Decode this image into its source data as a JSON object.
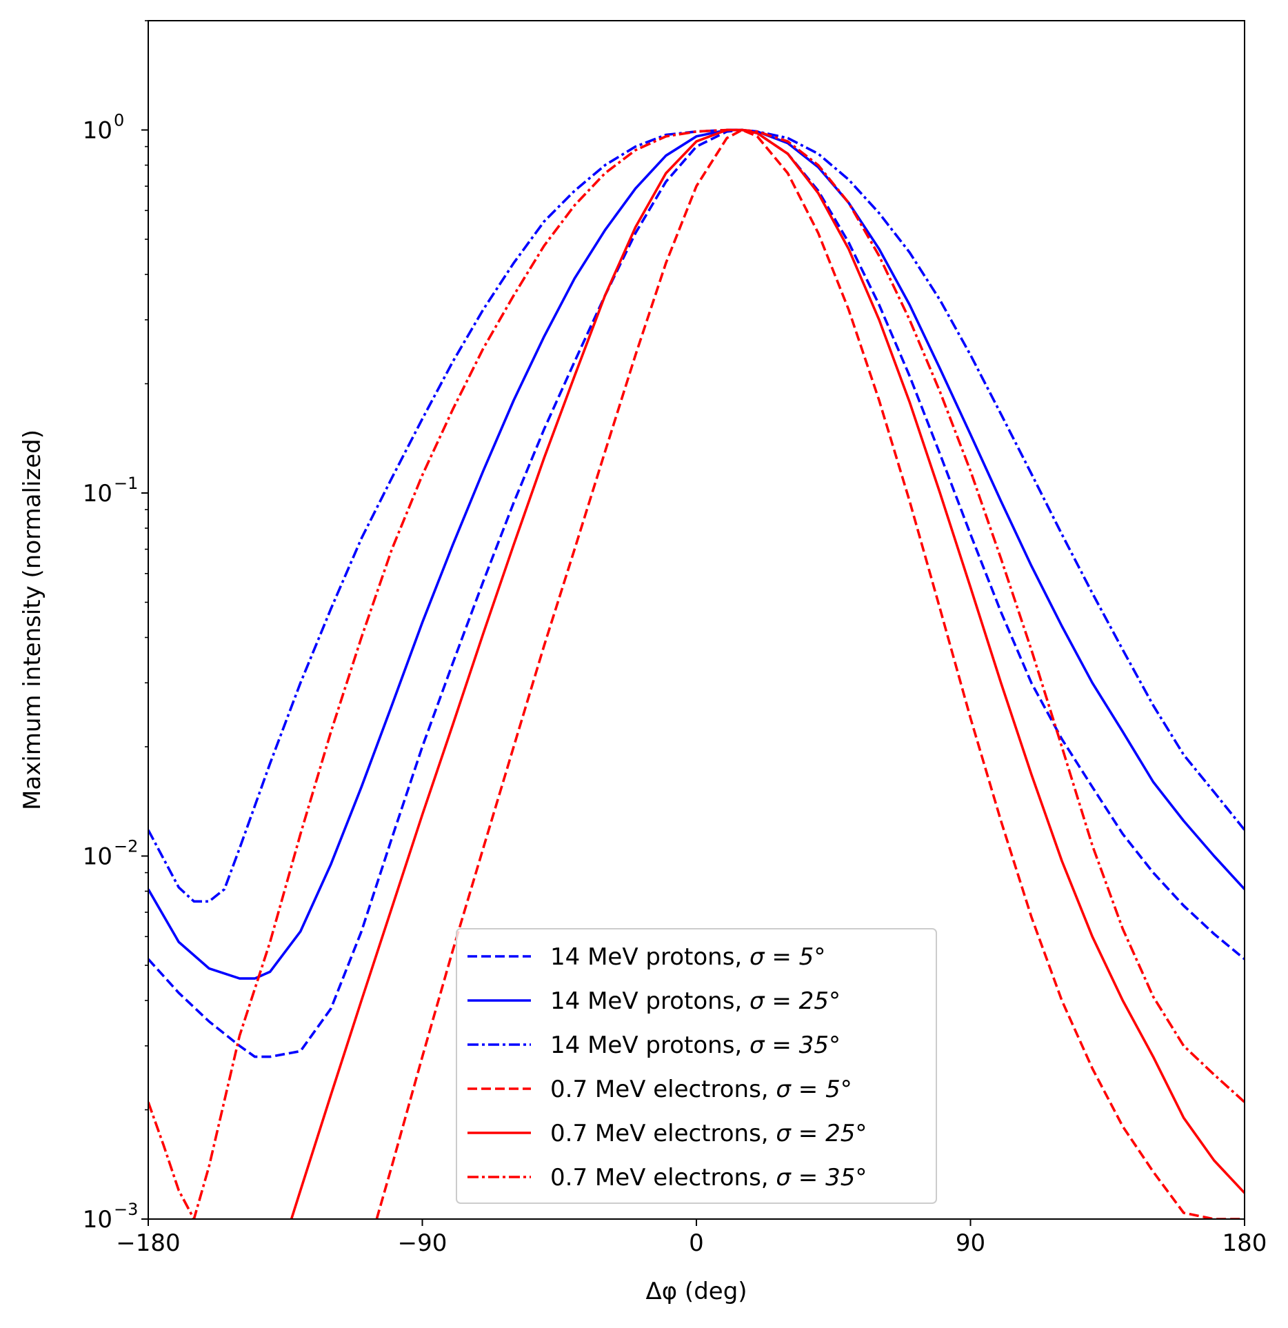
{
  "chart_data": {
    "type": "line",
    "title": "",
    "xlabel": "Δφ (deg)",
    "ylabel": "Maximum intensity (normalized)",
    "xlim": [
      -180,
      180
    ],
    "ylim": [
      0.001,
      2.0
    ],
    "yscale": "log",
    "grid": false,
    "legend_position": "lower-center",
    "x_ticks": [
      -180,
      -90,
      0,
      90,
      180
    ],
    "x_tick_labels": [
      "−180",
      "−90",
      "0",
      "90",
      "180"
    ],
    "y_ticks": [
      0.001,
      0.01,
      0.1,
      1
    ],
    "y_tick_labels": [
      {
        "base": "10",
        "exp": "−3"
      },
      {
        "base": "10",
        "exp": "−2"
      },
      {
        "base": "10",
        "exp": "−1"
      },
      {
        "base": "10",
        "exp": "0"
      }
    ],
    "series": [
      {
        "name": "14 MeV protons, σ = 5°",
        "legend_text": "14 MeV protons, ",
        "legend_math": "σ = 5°",
        "color": "#0000ff",
        "style": "dashed",
        "x": [
          -180,
          -170,
          -160,
          -150,
          -145,
          -140,
          -130,
          -120,
          -110,
          -100,
          -90,
          -80,
          -70,
          -60,
          -50,
          -40,
          -30,
          -20,
          -10,
          0,
          10,
          15,
          20,
          30,
          40,
          50,
          60,
          70,
          80,
          90,
          100,
          110,
          120,
          130,
          140,
          150,
          160,
          170,
          180
        ],
        "y": [
          0.0052,
          0.0042,
          0.0035,
          0.003,
          0.0028,
          0.0028,
          0.0029,
          0.0038,
          0.0062,
          0.0112,
          0.02,
          0.034,
          0.057,
          0.094,
          0.15,
          0.23,
          0.35,
          0.52,
          0.72,
          0.9,
          0.99,
          1.0,
          0.98,
          0.86,
          0.68,
          0.49,
          0.33,
          0.21,
          0.128,
          0.077,
          0.047,
          0.03,
          0.021,
          0.0155,
          0.0115,
          0.009,
          0.0073,
          0.0061,
          0.0052
        ]
      },
      {
        "name": "14 MeV protons, σ = 25°",
        "legend_text": "14 MeV protons, ",
        "legend_math": "σ = 25°",
        "color": "#0000ff",
        "style": "solid",
        "x": [
          -180,
          -170,
          -160,
          -150,
          -145,
          -140,
          -130,
          -120,
          -110,
          -100,
          -90,
          -80,
          -70,
          -60,
          -50,
          -40,
          -30,
          -20,
          -10,
          0,
          10,
          15,
          20,
          30,
          40,
          50,
          60,
          70,
          80,
          90,
          100,
          110,
          120,
          130,
          140,
          150,
          160,
          170,
          180
        ],
        "y": [
          0.0081,
          0.0058,
          0.0049,
          0.0046,
          0.0046,
          0.0048,
          0.0062,
          0.0095,
          0.0155,
          0.026,
          0.044,
          0.072,
          0.115,
          0.18,
          0.27,
          0.39,
          0.53,
          0.69,
          0.85,
          0.96,
          1.0,
          1.0,
          0.99,
          0.92,
          0.79,
          0.63,
          0.47,
          0.33,
          0.22,
          0.145,
          0.095,
          0.063,
          0.043,
          0.03,
          0.022,
          0.016,
          0.0125,
          0.01,
          0.0081
        ]
      },
      {
        "name": "14 MeV protons, σ = 35°",
        "legend_text": "14 MeV protons, ",
        "legend_math": "σ = 35°",
        "color": "#0000ff",
        "style": "dashdot",
        "x": [
          -180,
          -170,
          -165,
          -160,
          -155,
          -150,
          -140,
          -130,
          -120,
          -110,
          -100,
          -90,
          -80,
          -70,
          -60,
          -50,
          -40,
          -30,
          -20,
          -10,
          0,
          10,
          15,
          20,
          30,
          40,
          50,
          60,
          70,
          80,
          90,
          100,
          110,
          120,
          130,
          140,
          150,
          160,
          170,
          180
        ],
        "y": [
          0.0118,
          0.0082,
          0.0075,
          0.0075,
          0.0081,
          0.0105,
          0.018,
          0.03,
          0.048,
          0.075,
          0.11,
          0.16,
          0.23,
          0.32,
          0.43,
          0.56,
          0.68,
          0.8,
          0.9,
          0.97,
          0.99,
          1.0,
          1.0,
          0.99,
          0.95,
          0.86,
          0.73,
          0.59,
          0.46,
          0.34,
          0.24,
          0.165,
          0.113,
          0.077,
          0.053,
          0.037,
          0.026,
          0.019,
          0.015,
          0.0118
        ]
      },
      {
        "name": "0.7 MeV electrons, σ = 5°",
        "legend_text": "0.7 MeV electrons, ",
        "legend_math": "σ = 5°",
        "color": "#ff0000",
        "style": "dashed",
        "x": [
          -105,
          -100,
          -90,
          -80,
          -70,
          -60,
          -50,
          -40,
          -30,
          -20,
          -10,
          0,
          10,
          15,
          20,
          30,
          40,
          50,
          60,
          70,
          80,
          90,
          100,
          110,
          120,
          130,
          140,
          150,
          160,
          170,
          180
        ],
        "y": [
          0.001,
          0.0014,
          0.0028,
          0.0055,
          0.0105,
          0.02,
          0.038,
          0.07,
          0.13,
          0.24,
          0.43,
          0.7,
          0.95,
          1.0,
          0.96,
          0.76,
          0.52,
          0.32,
          0.18,
          0.095,
          0.048,
          0.024,
          0.0125,
          0.0068,
          0.004,
          0.0026,
          0.0018,
          0.00135,
          0.00104,
          0.001,
          0.001
        ]
      },
      {
        "name": "0.7 MeV electrons, σ = 25°",
        "legend_text": "0.7 MeV electrons, ",
        "legend_math": "σ = 25°",
        "color": "#ff0000",
        "style": "solid",
        "x": [
          -133,
          -130,
          -120,
          -110,
          -100,
          -90,
          -80,
          -70,
          -60,
          -50,
          -40,
          -30,
          -20,
          -10,
          0,
          10,
          15,
          20,
          30,
          40,
          50,
          60,
          70,
          80,
          90,
          100,
          110,
          120,
          130,
          140,
          150,
          160,
          170,
          180
        ],
        "y": [
          0.001,
          0.0012,
          0.0022,
          0.004,
          0.0072,
          0.013,
          0.023,
          0.041,
          0.072,
          0.125,
          0.21,
          0.35,
          0.54,
          0.76,
          0.93,
          1.0,
          1.0,
          0.98,
          0.86,
          0.67,
          0.47,
          0.3,
          0.178,
          0.1,
          0.055,
          0.03,
          0.0168,
          0.0097,
          0.006,
          0.004,
          0.0028,
          0.0019,
          0.00145,
          0.00118
        ]
      },
      {
        "name": "0.7 MeV electrons, σ = 35°",
        "legend_text": "0.7 MeV electrons, ",
        "legend_math": "σ = 35°",
        "color": "#ff0000",
        "style": "dashdot",
        "x": [
          -180,
          -175,
          -170,
          -165,
          -160,
          -150,
          -140,
          -130,
          -120,
          -110,
          -100,
          -90,
          -80,
          -70,
          -60,
          -50,
          -40,
          -30,
          -20,
          -10,
          0,
          10,
          15,
          20,
          30,
          40,
          50,
          60,
          70,
          80,
          90,
          100,
          110,
          120,
          130,
          140,
          150,
          160,
          170,
          180
        ],
        "y": [
          0.0021,
          0.0016,
          0.0012,
          0.001,
          0.0014,
          0.0032,
          0.0058,
          0.0115,
          0.022,
          0.04,
          0.07,
          0.112,
          0.17,
          0.25,
          0.35,
          0.48,
          0.62,
          0.76,
          0.88,
          0.96,
          0.99,
          1.0,
          1.0,
          0.99,
          0.93,
          0.8,
          0.63,
          0.45,
          0.3,
          0.19,
          0.115,
          0.066,
          0.037,
          0.02,
          0.0107,
          0.0063,
          0.0041,
          0.003,
          0.0025,
          0.0021
        ]
      }
    ]
  }
}
